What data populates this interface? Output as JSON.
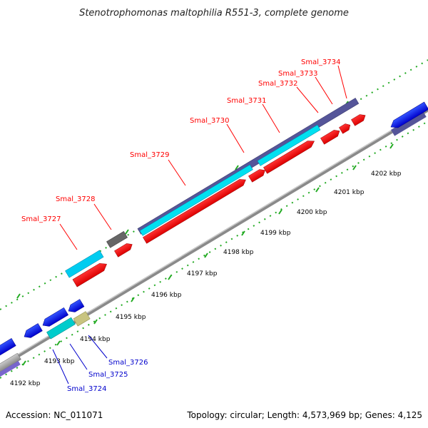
{
  "title": "Stenotrophomonas maltophilia R551-3, complete genome",
  "footer": {
    "accession": "Accession: NC_011071",
    "summary": "Topology: circular; Length: 4,573,969 bp; Genes: 4,125"
  },
  "colors": {
    "forward_cds": "#ff0000",
    "reverse_cds": "#0000ee",
    "orf_forward": "#555599",
    "orf_cyan": "#00e0f0",
    "backbone": "#999999",
    "tick": "#22aa22",
    "label_red": "#ff0000",
    "label_blue": "#0000cc"
  },
  "ticks": [
    {
      "label": "4192 kbp"
    },
    {
      "label": "4193 kbp"
    },
    {
      "label": "4194 kbp"
    },
    {
      "label": "4195 kbp"
    },
    {
      "label": "4196 kbp"
    },
    {
      "label": "4197 kbp"
    },
    {
      "label": "4198 kbp"
    },
    {
      "label": "4199 kbp"
    },
    {
      "label": "4200 kbp"
    },
    {
      "label": "4201 kbp"
    },
    {
      "label": "4202 kbp"
    }
  ],
  "gene_labels_forward": [
    "Smal_3727",
    "Smal_3728",
    "Smal_3729",
    "Smal_3730",
    "Smal_3731",
    "Smal_3732",
    "Smal_3733",
    "Smal_3734"
  ],
  "gene_labels_reverse": [
    "Smal_3724",
    "Smal_3725",
    "Smal_3726"
  ]
}
